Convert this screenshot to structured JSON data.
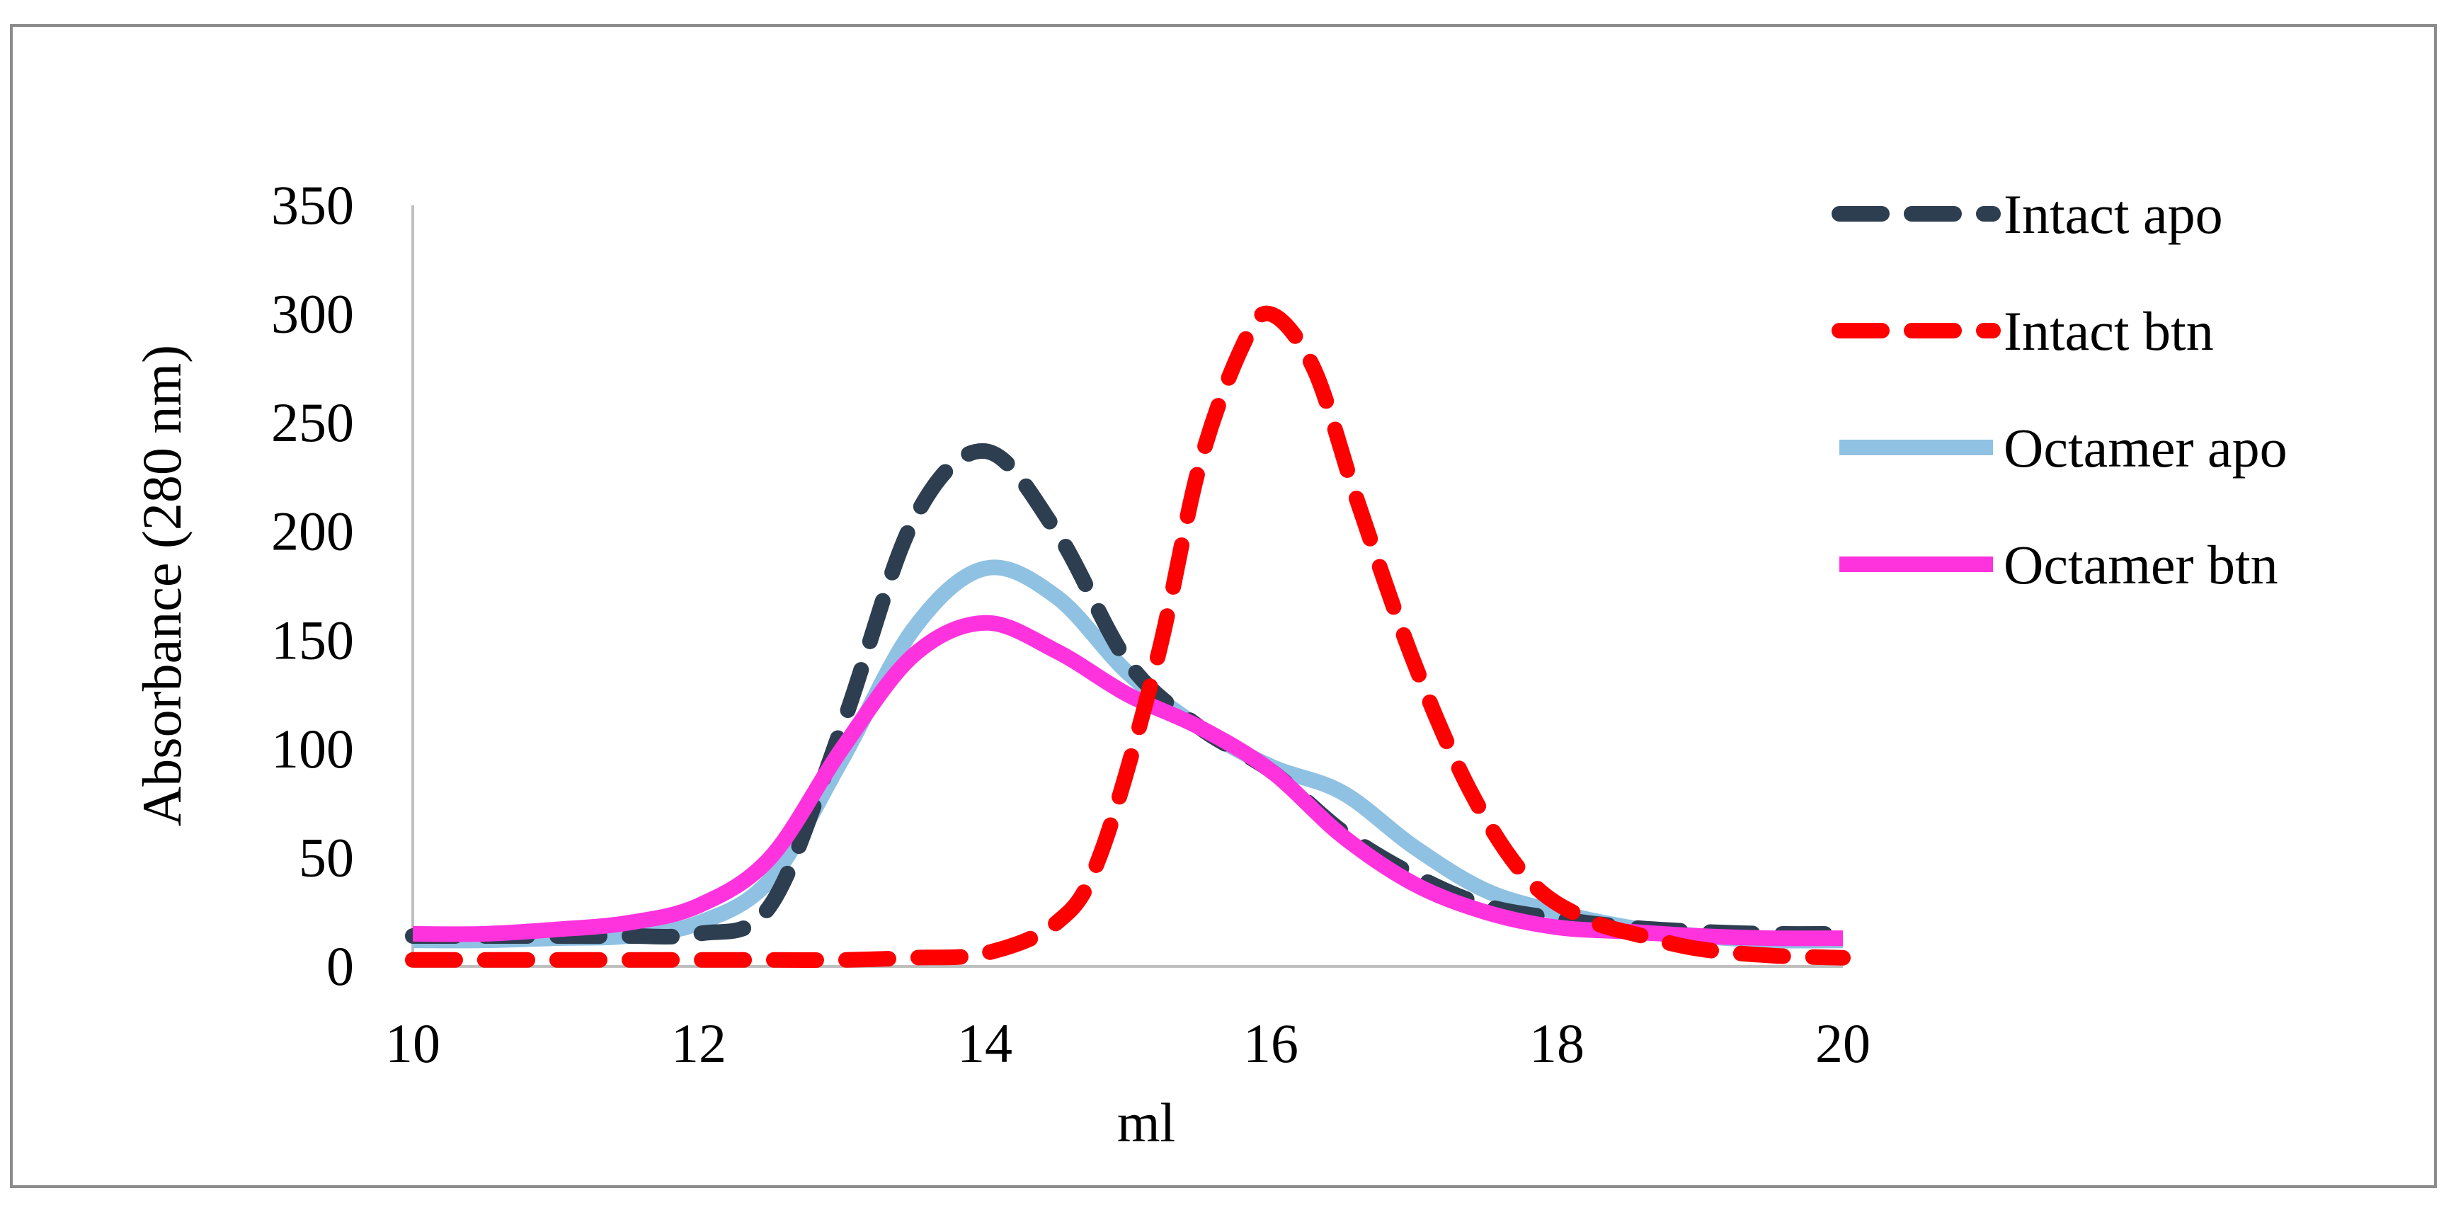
{
  "chart_data": {
    "type": "line",
    "title": "",
    "xlabel": "ml",
    "ylabel": "Absorbance (280 nm)",
    "xlim": [
      10,
      20
    ],
    "ylim": [
      0,
      350
    ],
    "xticks": [
      10,
      12,
      14,
      16,
      18,
      20
    ],
    "yticks": [
      0,
      50,
      100,
      150,
      200,
      250,
      300,
      350
    ],
    "grid": false,
    "legend_position": "right",
    "series": [
      {
        "name": "Intact apo",
        "color": "#2d3e50",
        "style": "dashed",
        "x": [
          10,
          10.5,
          11,
          11.5,
          12,
          12.5,
          13,
          13.5,
          14,
          14.5,
          15,
          15.5,
          16,
          16.5,
          17,
          17.5,
          18,
          18.5,
          19,
          19.5,
          20
        ],
        "y": [
          14,
          14,
          14,
          14,
          15,
          28,
          110,
          205,
          237,
          200,
          140,
          110,
          90,
          62,
          42,
          28,
          22,
          18,
          16,
          15,
          15
        ]
      },
      {
        "name": "Intact btn",
        "color": "#ff0000",
        "style": "dashed",
        "x": [
          10,
          11,
          12,
          12.5,
          13,
          13.5,
          14,
          14.5,
          14.8,
          15.2,
          15.5,
          15.8,
          16,
          16.3,
          16.6,
          17,
          17.4,
          17.8,
          18.2,
          18.6,
          19,
          19.5,
          20
        ],
        "y": [
          3,
          3,
          3,
          3,
          3,
          4,
          6,
          20,
          50,
          140,
          230,
          285,
          300,
          275,
          215,
          140,
          80,
          40,
          22,
          14,
          8,
          5,
          4
        ]
      },
      {
        "name": "Octamer apo",
        "color": "#8fc1e3",
        "style": "solid",
        "x": [
          10,
          10.5,
          11,
          11.5,
          12,
          12.5,
          13,
          13.5,
          14,
          14.5,
          15,
          15.5,
          16,
          16.5,
          17,
          17.5,
          18,
          18.5,
          19,
          19.5,
          20
        ],
        "y": [
          12,
          12,
          13,
          14,
          20,
          40,
          95,
          155,
          183,
          170,
          135,
          110,
          92,
          80,
          55,
          35,
          25,
          18,
          14,
          12,
          12
        ]
      },
      {
        "name": "Octamer btn",
        "color": "#ff33dd",
        "style": "solid",
        "x": [
          10,
          10.5,
          11,
          11.5,
          12,
          12.5,
          13,
          13.5,
          14,
          14.5,
          15,
          15.5,
          16,
          16.5,
          17,
          17.5,
          18,
          18.5,
          19,
          19.5,
          20
        ],
        "y": [
          15,
          15,
          17,
          20,
          28,
          50,
          100,
          143,
          158,
          145,
          125,
          110,
          90,
          60,
          38,
          25,
          18,
          16,
          14,
          13,
          13
        ]
      }
    ]
  }
}
